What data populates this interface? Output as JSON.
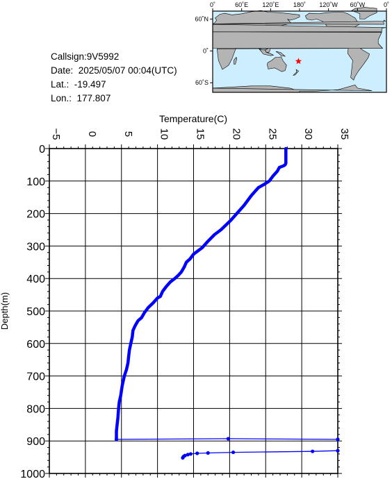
{
  "info": {
    "callsign": "Callsign:9V5992",
    "date": "Date:  2025/05/07 00:04(UTC)",
    "lat": "Lat.:  -19.497",
    "lon": "Lon.:  177.807"
  },
  "map": {
    "top_labels": [
      "0˚",
      "60˚E",
      "120˚E",
      "180˚",
      "120˚W",
      "60˚W",
      "0˚"
    ],
    "lat_labels": [
      "60˚N",
      "0˚",
      "60˚S"
    ],
    "ocean_color": "#cdeefe",
    "land_color": "#b4b4b4",
    "marker": {
      "lat": -19.497,
      "lon": 177.807,
      "icon": "star-icon",
      "color": "#ff0000"
    }
  },
  "chart_data": {
    "type": "line",
    "title": "",
    "xlabel": "Temperature(C)",
    "ylabel": "Depth(m)",
    "xlim": [
      -5,
      35
    ],
    "ylim": [
      1000,
      0
    ],
    "x_ticks": [
      -5,
      0,
      5,
      10,
      15,
      20,
      25,
      30,
      35
    ],
    "y_ticks": [
      0,
      100,
      200,
      300,
      400,
      500,
      600,
      700,
      800,
      900,
      1000
    ],
    "x_tick_labels": [
      "−5",
      "0",
      "5",
      "10",
      "15",
      "20",
      "25",
      "30",
      "35"
    ],
    "y_tick_labels": [
      "0",
      "100",
      "200",
      "300",
      "400",
      "500",
      "600",
      "700",
      "800",
      "900",
      "1000"
    ],
    "grid": true,
    "series_color": "#0000ff",
    "series": [
      {
        "name": "",
        "x": [
          27.8,
          27.8,
          27.7,
          27.5,
          26.9,
          26.6,
          26.0,
          25.5,
          24.8,
          24.0,
          23.6,
          23.0,
          22.5,
          22.0,
          21.4,
          20.8,
          20.2,
          19.5,
          18.8,
          17.9,
          17.0,
          16.2,
          15.6,
          15.0,
          14.5,
          14.0,
          13.7,
          13.3,
          12.9,
          12.4,
          11.8,
          11.2,
          10.7,
          10.4,
          10.0,
          9.4,
          8.7,
          8.2,
          7.8,
          7.3,
          6.9,
          6.6,
          6.5,
          6.3,
          6.1,
          6.0,
          5.9,
          5.7,
          5.4,
          5.1,
          4.9,
          4.7,
          4.6,
          4.5,
          4.4,
          4.3,
          4.3
        ],
        "y": [
          0,
          45,
          50,
          53,
          58,
          70,
          85,
          100,
          110,
          120,
          130,
          145,
          160,
          175,
          190,
          205,
          220,
          235,
          250,
          265,
          285,
          305,
          315,
          325,
          340,
          350,
          365,
          380,
          390,
          400,
          410,
          425,
          440,
          455,
          460,
          475,
          490,
          505,
          520,
          530,
          545,
          560,
          580,
          600,
          620,
          640,
          660,
          680,
          700,
          730,
          760,
          780,
          800,
          830,
          850,
          870,
          895
        ]
      },
      {
        "name": "",
        "x": [
          4.3,
          19.8,
          35.0
        ],
        "y": [
          895,
          893,
          895
        ]
      },
      {
        "name": "",
        "x": [
          35.0,
          31.5,
          20.5,
          17.0,
          15.5,
          14.6,
          14.2,
          13.8,
          13.6,
          13.5
        ],
        "y": [
          930,
          932,
          935,
          937,
          938,
          940,
          942,
          945,
          948,
          952
        ]
      }
    ]
  }
}
